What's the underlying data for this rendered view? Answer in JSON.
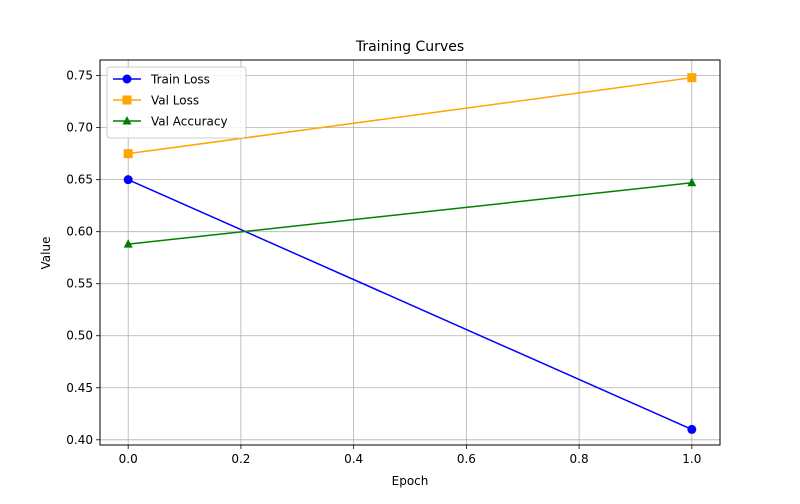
{
  "chart_data": {
    "type": "line",
    "title": "Training Curves",
    "xlabel": "Epoch",
    "ylabel": "Value",
    "xlim": [
      -0.05,
      1.05
    ],
    "ylim": [
      0.395,
      0.765
    ],
    "xticks": [
      0.0,
      0.2,
      0.4,
      0.6,
      0.8,
      1.0
    ],
    "xtick_labels": [
      "0.0",
      "0.2",
      "0.4",
      "0.6",
      "0.8",
      "1.0"
    ],
    "yticks": [
      0.4,
      0.45,
      0.5,
      0.55,
      0.6,
      0.65,
      0.7,
      0.75
    ],
    "ytick_labels": [
      "0.40",
      "0.45",
      "0.50",
      "0.55",
      "0.60",
      "0.65",
      "0.70",
      "0.75"
    ],
    "grid": true,
    "legend_position": "upper-left",
    "x": [
      0,
      1
    ],
    "series": [
      {
        "name": "Train Loss",
        "values": [
          0.65,
          0.41
        ],
        "color": "#0000ff",
        "marker": "circle"
      },
      {
        "name": "Val Loss",
        "values": [
          0.675,
          0.748
        ],
        "color": "#ffa500",
        "marker": "square"
      },
      {
        "name": "Val Accuracy",
        "values": [
          0.588,
          0.647
        ],
        "color": "#008000",
        "marker": "triangle"
      }
    ]
  }
}
